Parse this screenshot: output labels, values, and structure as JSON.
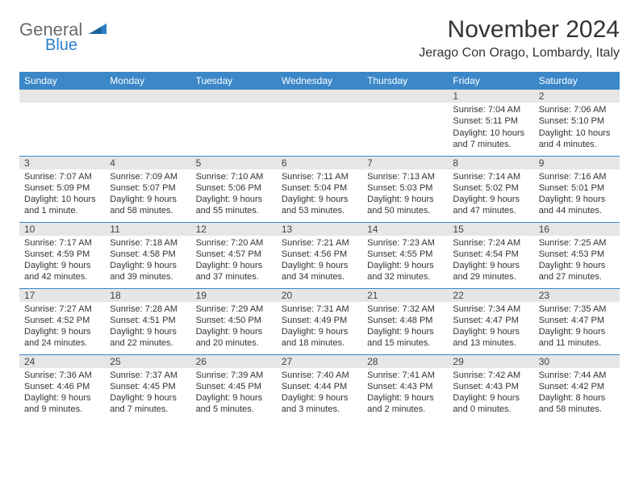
{
  "logo": {
    "text_top": "General",
    "text_bottom": "Blue",
    "top_color": "#6a6a6a",
    "bottom_color": "#2a7fc9"
  },
  "title": "November 2024",
  "location": "Jerago Con Orago, Lombardy, Italy",
  "header_bg": "#3b87c8",
  "header_fg": "#ffffff",
  "daynum_bg": "#e6e6e6",
  "border_color": "#3b87c8",
  "weekdays": [
    "Sunday",
    "Monday",
    "Tuesday",
    "Wednesday",
    "Thursday",
    "Friday",
    "Saturday"
  ],
  "weeks": [
    [
      null,
      null,
      null,
      null,
      null,
      {
        "n": "1",
        "sr": "Sunrise: 7:04 AM",
        "ss": "Sunset: 5:11 PM",
        "dl1": "Daylight: 10 hours",
        "dl2": "and 7 minutes."
      },
      {
        "n": "2",
        "sr": "Sunrise: 7:06 AM",
        "ss": "Sunset: 5:10 PM",
        "dl1": "Daylight: 10 hours",
        "dl2": "and 4 minutes."
      }
    ],
    [
      {
        "n": "3",
        "sr": "Sunrise: 7:07 AM",
        "ss": "Sunset: 5:09 PM",
        "dl1": "Daylight: 10 hours",
        "dl2": "and 1 minute."
      },
      {
        "n": "4",
        "sr": "Sunrise: 7:09 AM",
        "ss": "Sunset: 5:07 PM",
        "dl1": "Daylight: 9 hours",
        "dl2": "and 58 minutes."
      },
      {
        "n": "5",
        "sr": "Sunrise: 7:10 AM",
        "ss": "Sunset: 5:06 PM",
        "dl1": "Daylight: 9 hours",
        "dl2": "and 55 minutes."
      },
      {
        "n": "6",
        "sr": "Sunrise: 7:11 AM",
        "ss": "Sunset: 5:04 PM",
        "dl1": "Daylight: 9 hours",
        "dl2": "and 53 minutes."
      },
      {
        "n": "7",
        "sr": "Sunrise: 7:13 AM",
        "ss": "Sunset: 5:03 PM",
        "dl1": "Daylight: 9 hours",
        "dl2": "and 50 minutes."
      },
      {
        "n": "8",
        "sr": "Sunrise: 7:14 AM",
        "ss": "Sunset: 5:02 PM",
        "dl1": "Daylight: 9 hours",
        "dl2": "and 47 minutes."
      },
      {
        "n": "9",
        "sr": "Sunrise: 7:16 AM",
        "ss": "Sunset: 5:01 PM",
        "dl1": "Daylight: 9 hours",
        "dl2": "and 44 minutes."
      }
    ],
    [
      {
        "n": "10",
        "sr": "Sunrise: 7:17 AM",
        "ss": "Sunset: 4:59 PM",
        "dl1": "Daylight: 9 hours",
        "dl2": "and 42 minutes."
      },
      {
        "n": "11",
        "sr": "Sunrise: 7:18 AM",
        "ss": "Sunset: 4:58 PM",
        "dl1": "Daylight: 9 hours",
        "dl2": "and 39 minutes."
      },
      {
        "n": "12",
        "sr": "Sunrise: 7:20 AM",
        "ss": "Sunset: 4:57 PM",
        "dl1": "Daylight: 9 hours",
        "dl2": "and 37 minutes."
      },
      {
        "n": "13",
        "sr": "Sunrise: 7:21 AM",
        "ss": "Sunset: 4:56 PM",
        "dl1": "Daylight: 9 hours",
        "dl2": "and 34 minutes."
      },
      {
        "n": "14",
        "sr": "Sunrise: 7:23 AM",
        "ss": "Sunset: 4:55 PM",
        "dl1": "Daylight: 9 hours",
        "dl2": "and 32 minutes."
      },
      {
        "n": "15",
        "sr": "Sunrise: 7:24 AM",
        "ss": "Sunset: 4:54 PM",
        "dl1": "Daylight: 9 hours",
        "dl2": "and 29 minutes."
      },
      {
        "n": "16",
        "sr": "Sunrise: 7:25 AM",
        "ss": "Sunset: 4:53 PM",
        "dl1": "Daylight: 9 hours",
        "dl2": "and 27 minutes."
      }
    ],
    [
      {
        "n": "17",
        "sr": "Sunrise: 7:27 AM",
        "ss": "Sunset: 4:52 PM",
        "dl1": "Daylight: 9 hours",
        "dl2": "and 24 minutes."
      },
      {
        "n": "18",
        "sr": "Sunrise: 7:28 AM",
        "ss": "Sunset: 4:51 PM",
        "dl1": "Daylight: 9 hours",
        "dl2": "and 22 minutes."
      },
      {
        "n": "19",
        "sr": "Sunrise: 7:29 AM",
        "ss": "Sunset: 4:50 PM",
        "dl1": "Daylight: 9 hours",
        "dl2": "and 20 minutes."
      },
      {
        "n": "20",
        "sr": "Sunrise: 7:31 AM",
        "ss": "Sunset: 4:49 PM",
        "dl1": "Daylight: 9 hours",
        "dl2": "and 18 minutes."
      },
      {
        "n": "21",
        "sr": "Sunrise: 7:32 AM",
        "ss": "Sunset: 4:48 PM",
        "dl1": "Daylight: 9 hours",
        "dl2": "and 15 minutes."
      },
      {
        "n": "22",
        "sr": "Sunrise: 7:34 AM",
        "ss": "Sunset: 4:47 PM",
        "dl1": "Daylight: 9 hours",
        "dl2": "and 13 minutes."
      },
      {
        "n": "23",
        "sr": "Sunrise: 7:35 AM",
        "ss": "Sunset: 4:47 PM",
        "dl1": "Daylight: 9 hours",
        "dl2": "and 11 minutes."
      }
    ],
    [
      {
        "n": "24",
        "sr": "Sunrise: 7:36 AM",
        "ss": "Sunset: 4:46 PM",
        "dl1": "Daylight: 9 hours",
        "dl2": "and 9 minutes."
      },
      {
        "n": "25",
        "sr": "Sunrise: 7:37 AM",
        "ss": "Sunset: 4:45 PM",
        "dl1": "Daylight: 9 hours",
        "dl2": "and 7 minutes."
      },
      {
        "n": "26",
        "sr": "Sunrise: 7:39 AM",
        "ss": "Sunset: 4:45 PM",
        "dl1": "Daylight: 9 hours",
        "dl2": "and 5 minutes."
      },
      {
        "n": "27",
        "sr": "Sunrise: 7:40 AM",
        "ss": "Sunset: 4:44 PM",
        "dl1": "Daylight: 9 hours",
        "dl2": "and 3 minutes."
      },
      {
        "n": "28",
        "sr": "Sunrise: 7:41 AM",
        "ss": "Sunset: 4:43 PM",
        "dl1": "Daylight: 9 hours",
        "dl2": "and 2 minutes."
      },
      {
        "n": "29",
        "sr": "Sunrise: 7:42 AM",
        "ss": "Sunset: 4:43 PM",
        "dl1": "Daylight: 9 hours",
        "dl2": "and 0 minutes."
      },
      {
        "n": "30",
        "sr": "Sunrise: 7:44 AM",
        "ss": "Sunset: 4:42 PM",
        "dl1": "Daylight: 8 hours",
        "dl2": "and 58 minutes."
      }
    ]
  ]
}
